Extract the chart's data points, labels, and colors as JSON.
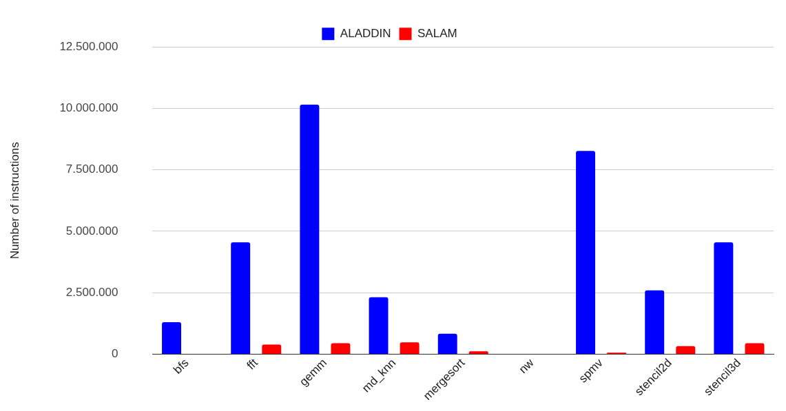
{
  "chart_data": {
    "type": "bar",
    "ylabel": "Number of instructions",
    "categories": [
      "bfs",
      "fft",
      "gemm",
      "md_knn",
      "mergesort",
      "nw",
      "spmv",
      "stencil2d",
      "stencil3d"
    ],
    "series": [
      {
        "name": "ALADDIN",
        "color": "#0000ff",
        "values": [
          1300000,
          4550000,
          10150000,
          2320000,
          830000,
          0,
          8270000,
          2600000,
          4550000
        ]
      },
      {
        "name": "SALAM",
        "color": "#ff0000",
        "values": [
          0,
          390000,
          450000,
          480000,
          120000,
          0,
          60000,
          330000,
          450000
        ]
      }
    ],
    "ylim": [
      0,
      12500000
    ],
    "yticks": [
      {
        "value": 0,
        "label": "0"
      },
      {
        "value": 2500000,
        "label": "2.500.000"
      },
      {
        "value": 5000000,
        "label": "5.000.000"
      },
      {
        "value": 7500000,
        "label": "7.500.000"
      },
      {
        "value": 10000000,
        "label": "10.000.000"
      },
      {
        "value": 12500000,
        "label": "12.500.000"
      }
    ],
    "grid": "y",
    "legend": "top"
  }
}
